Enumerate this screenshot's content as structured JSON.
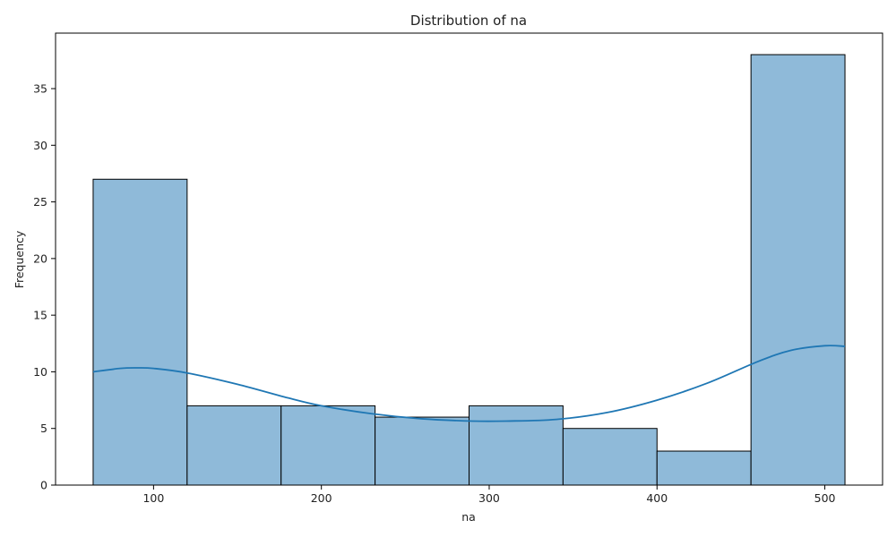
{
  "chart_data": {
    "type": "bar",
    "title": "Distribution of na",
    "xlabel": "na",
    "ylabel": "Frequency",
    "bins": [
      {
        "start": 64,
        "end": 120,
        "count": 27
      },
      {
        "start": 120,
        "end": 176,
        "count": 7
      },
      {
        "start": 176,
        "end": 232,
        "count": 7
      },
      {
        "start": 232,
        "end": 288,
        "count": 6
      },
      {
        "start": 288,
        "end": 344,
        "count": 7
      },
      {
        "start": 344,
        "end": 400,
        "count": 5
      },
      {
        "start": 400,
        "end": 456,
        "count": 3
      },
      {
        "start": 456,
        "end": 512,
        "count": 38
      }
    ],
    "kde": {
      "x": [
        64,
        80,
        90,
        100,
        120,
        150,
        180,
        200,
        230,
        260,
        290,
        310,
        340,
        370,
        400,
        430,
        460,
        480,
        500,
        512
      ],
      "y": [
        10.0,
        10.3,
        10.35,
        10.3,
        9.9,
        8.9,
        7.7,
        7.0,
        6.3,
        5.85,
        5.65,
        5.65,
        5.8,
        6.4,
        7.5,
        9.0,
        10.9,
        11.9,
        12.3,
        12.25
      ]
    },
    "xticks": [
      100,
      200,
      300,
      400,
      500
    ],
    "yticks": [
      0,
      5,
      10,
      15,
      20,
      25,
      30,
      35
    ],
    "xlim": [
      41.6,
      534.4
    ],
    "ylim": [
      0,
      39.9
    ],
    "colors": {
      "bar_fill": "#8fbad9",
      "bar_edge": "#000000",
      "kde_line": "#1f77b4"
    }
  }
}
